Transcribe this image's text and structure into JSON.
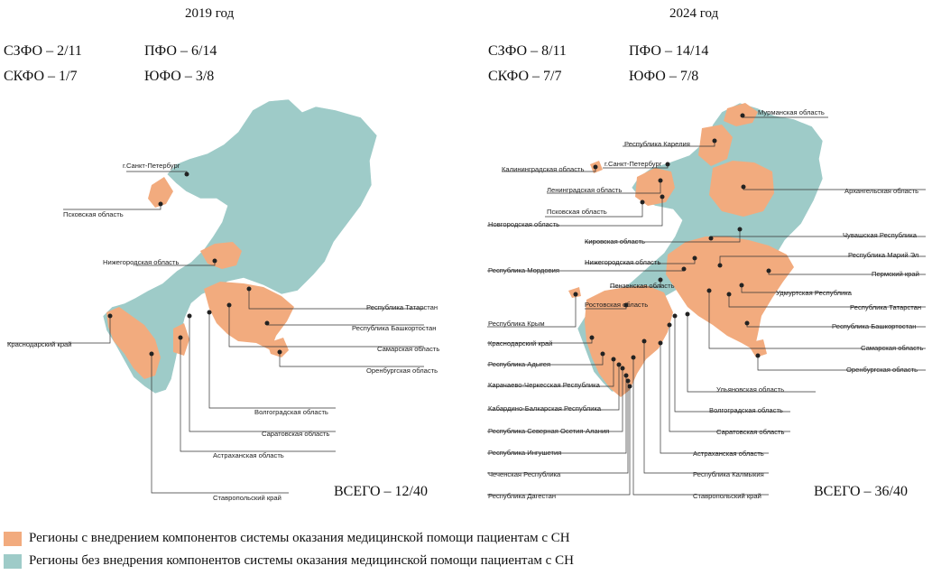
{
  "colors": {
    "implemented": "#f2ab7e",
    "not_implemented": "#9ecbc8",
    "border": "#ffffff",
    "leader": "#333333"
  },
  "left": {
    "year": "2019 год",
    "stats": {
      "szfo": "СЗФО – 2/11",
      "pfo": "ПФО – 6/14",
      "skfo": "СКФО – 1/7",
      "ufo": "ЮФО – 3/8"
    },
    "total": "ВСЕГО – 12/40",
    "labels": [
      "г.Санкт-Петербург",
      "Псковская область",
      "Нижегородская область",
      "Краснодарский край",
      "Республика Татарстан",
      "Республика Башкортостан",
      "Самарская область",
      "Оренбургская область",
      "Волгоградская область",
      "Саратовская область",
      "Астраханская область",
      "Ставропольский край"
    ]
  },
  "right": {
    "year": "2024 год",
    "stats": {
      "szfo": "СЗФО – 8/11",
      "pfo": "ПФО – 14/14",
      "skfo": "СКФО – 7/7",
      "ufo": "ЮФО – 7/8"
    },
    "total": "ВСЕГО – 36/40",
    "labels": [
      "Мурманская область",
      "Республика Карелия",
      "Калининградская область",
      "г.Санкт-Петербург",
      "Ленинградская область",
      "Архангельская область",
      "Псковская область",
      "Новгородская область",
      "Кировская область",
      "Чувашская Республика",
      "Нижегородская область",
      "Республика Марий Эл",
      "Республика Мордовия",
      "Пермский край",
      "Пензенская область",
      "Удмуртская Республика",
      "Ростовская область",
      "Республика Татарстан",
      "Республика Крым",
      "Республика Башкортостан",
      "Краснодарский край",
      "Самарская область",
      "Республика Адыгея",
      "Оренбургская область",
      "Карачаево-Черкесская Республика",
      "Ульяновская область",
      "Кабардино-Балкарская Республика",
      "Волгоградская область",
      "Республика Северная Осетия-Алания",
      "Саратовская область",
      "Республика Ингушетия",
      "Астраханская область",
      "Чеченская Республика",
      "Республика Калмыкия",
      "Республика Дагестан",
      "Ставропольский край"
    ]
  },
  "legend": {
    "implemented": "Регионы с внедрением компонентов системы оказания медицинской помощи пациентам с СН",
    "not_implemented": "Регионы без внедрения компонентов системы оказания медицинской помощи пациентам с СН"
  }
}
